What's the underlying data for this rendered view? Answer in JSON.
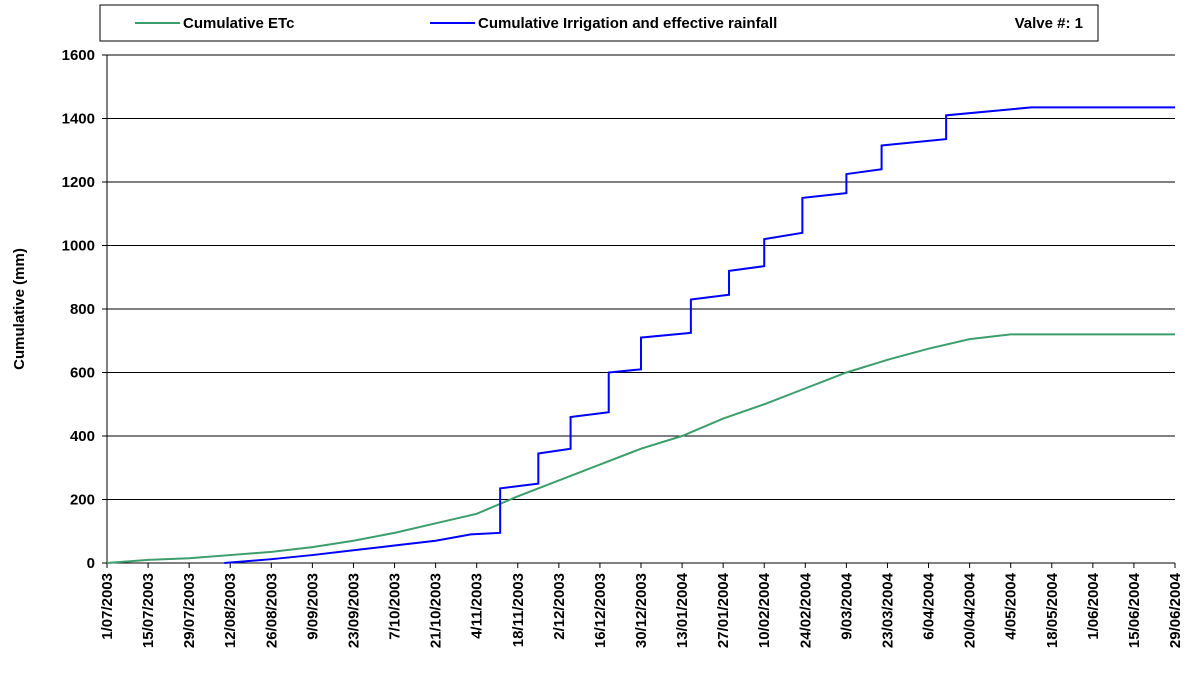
{
  "chart_data": {
    "type": "line",
    "y_label": "Cumulative (mm)",
    "annotation": "Valve #: 1",
    "ylim": [
      0,
      1600
    ],
    "yticks": [
      0,
      200,
      400,
      600,
      800,
      1000,
      1200,
      1400,
      1600
    ],
    "xlim": [
      "1/07/2003",
      "29/06/2004"
    ],
    "xticks": [
      "1/07/2003",
      "15/07/2003",
      "29/07/2003",
      "12/08/2003",
      "26/08/2003",
      "9/09/2003",
      "23/09/2003",
      "7/10/2003",
      "21/10/2003",
      "4/11/2003",
      "18/11/2003",
      "2/12/2003",
      "16/12/2003",
      "30/12/2003",
      "13/01/2004",
      "27/01/2004",
      "10/02/2004",
      "24/02/2004",
      "9/03/2004",
      "23/03/2004",
      "6/04/2004",
      "20/04/2004",
      "4/05/2004",
      "18/05/2004",
      "1/06/2004",
      "15/06/2004",
      "29/06/2004"
    ],
    "grid": true,
    "legend": "top",
    "series": [
      {
        "name": "Cumulative ETc",
        "color": "#3c9e6c",
        "x": [
          "1/07/2003",
          "15/07/2003",
          "29/07/2003",
          "12/08/2003",
          "26/08/2003",
          "9/09/2003",
          "23/09/2003",
          "7/10/2003",
          "21/10/2003",
          "4/11/2003",
          "18/11/2003",
          "2/12/2003",
          "16/12/2003",
          "30/12/2003",
          "13/01/2004",
          "27/01/2004",
          "10/02/2004",
          "24/02/2004",
          "9/03/2004",
          "23/03/2004",
          "6/04/2004",
          "20/04/2004",
          "4/05/2004",
          "29/06/2004"
        ],
        "values": [
          0,
          10,
          15,
          25,
          35,
          50,
          70,
          95,
          125,
          155,
          210,
          260,
          310,
          360,
          400,
          455,
          500,
          550,
          600,
          640,
          675,
          705,
          720,
          720
        ]
      },
      {
        "name": "Cumulative Irrigation and effective rainfall",
        "color": "#0000ff",
        "x": [
          "10/08/2003",
          "26/08/2003",
          "9/09/2003",
          "23/09/2003",
          "7/10/2003",
          "21/10/2003",
          "2/11/2003",
          "12/11/2003",
          "12/11/2003",
          "25/11/2003",
          "25/11/2003",
          "6/12/2003",
          "6/12/2003",
          "19/12/2003",
          "19/12/2003",
          "30/12/2003",
          "30/12/2003",
          "16/01/2004",
          "16/01/2004",
          "29/01/2004",
          "29/01/2004",
          "10/02/2004",
          "10/02/2004",
          "23/02/2004",
          "23/02/2004",
          "9/03/2004",
          "9/03/2004",
          "21/03/2004",
          "21/03/2004",
          "12/04/2004",
          "12/04/2004",
          "11/05/2004",
          "29/06/2004"
        ],
        "values": [
          0,
          12,
          25,
          40,
          55,
          70,
          90,
          95,
          235,
          250,
          345,
          360,
          460,
          475,
          600,
          610,
          710,
          725,
          830,
          845,
          920,
          935,
          1020,
          1040,
          1150,
          1165,
          1225,
          1240,
          1315,
          1335,
          1410,
          1435,
          1435
        ]
      }
    ]
  }
}
